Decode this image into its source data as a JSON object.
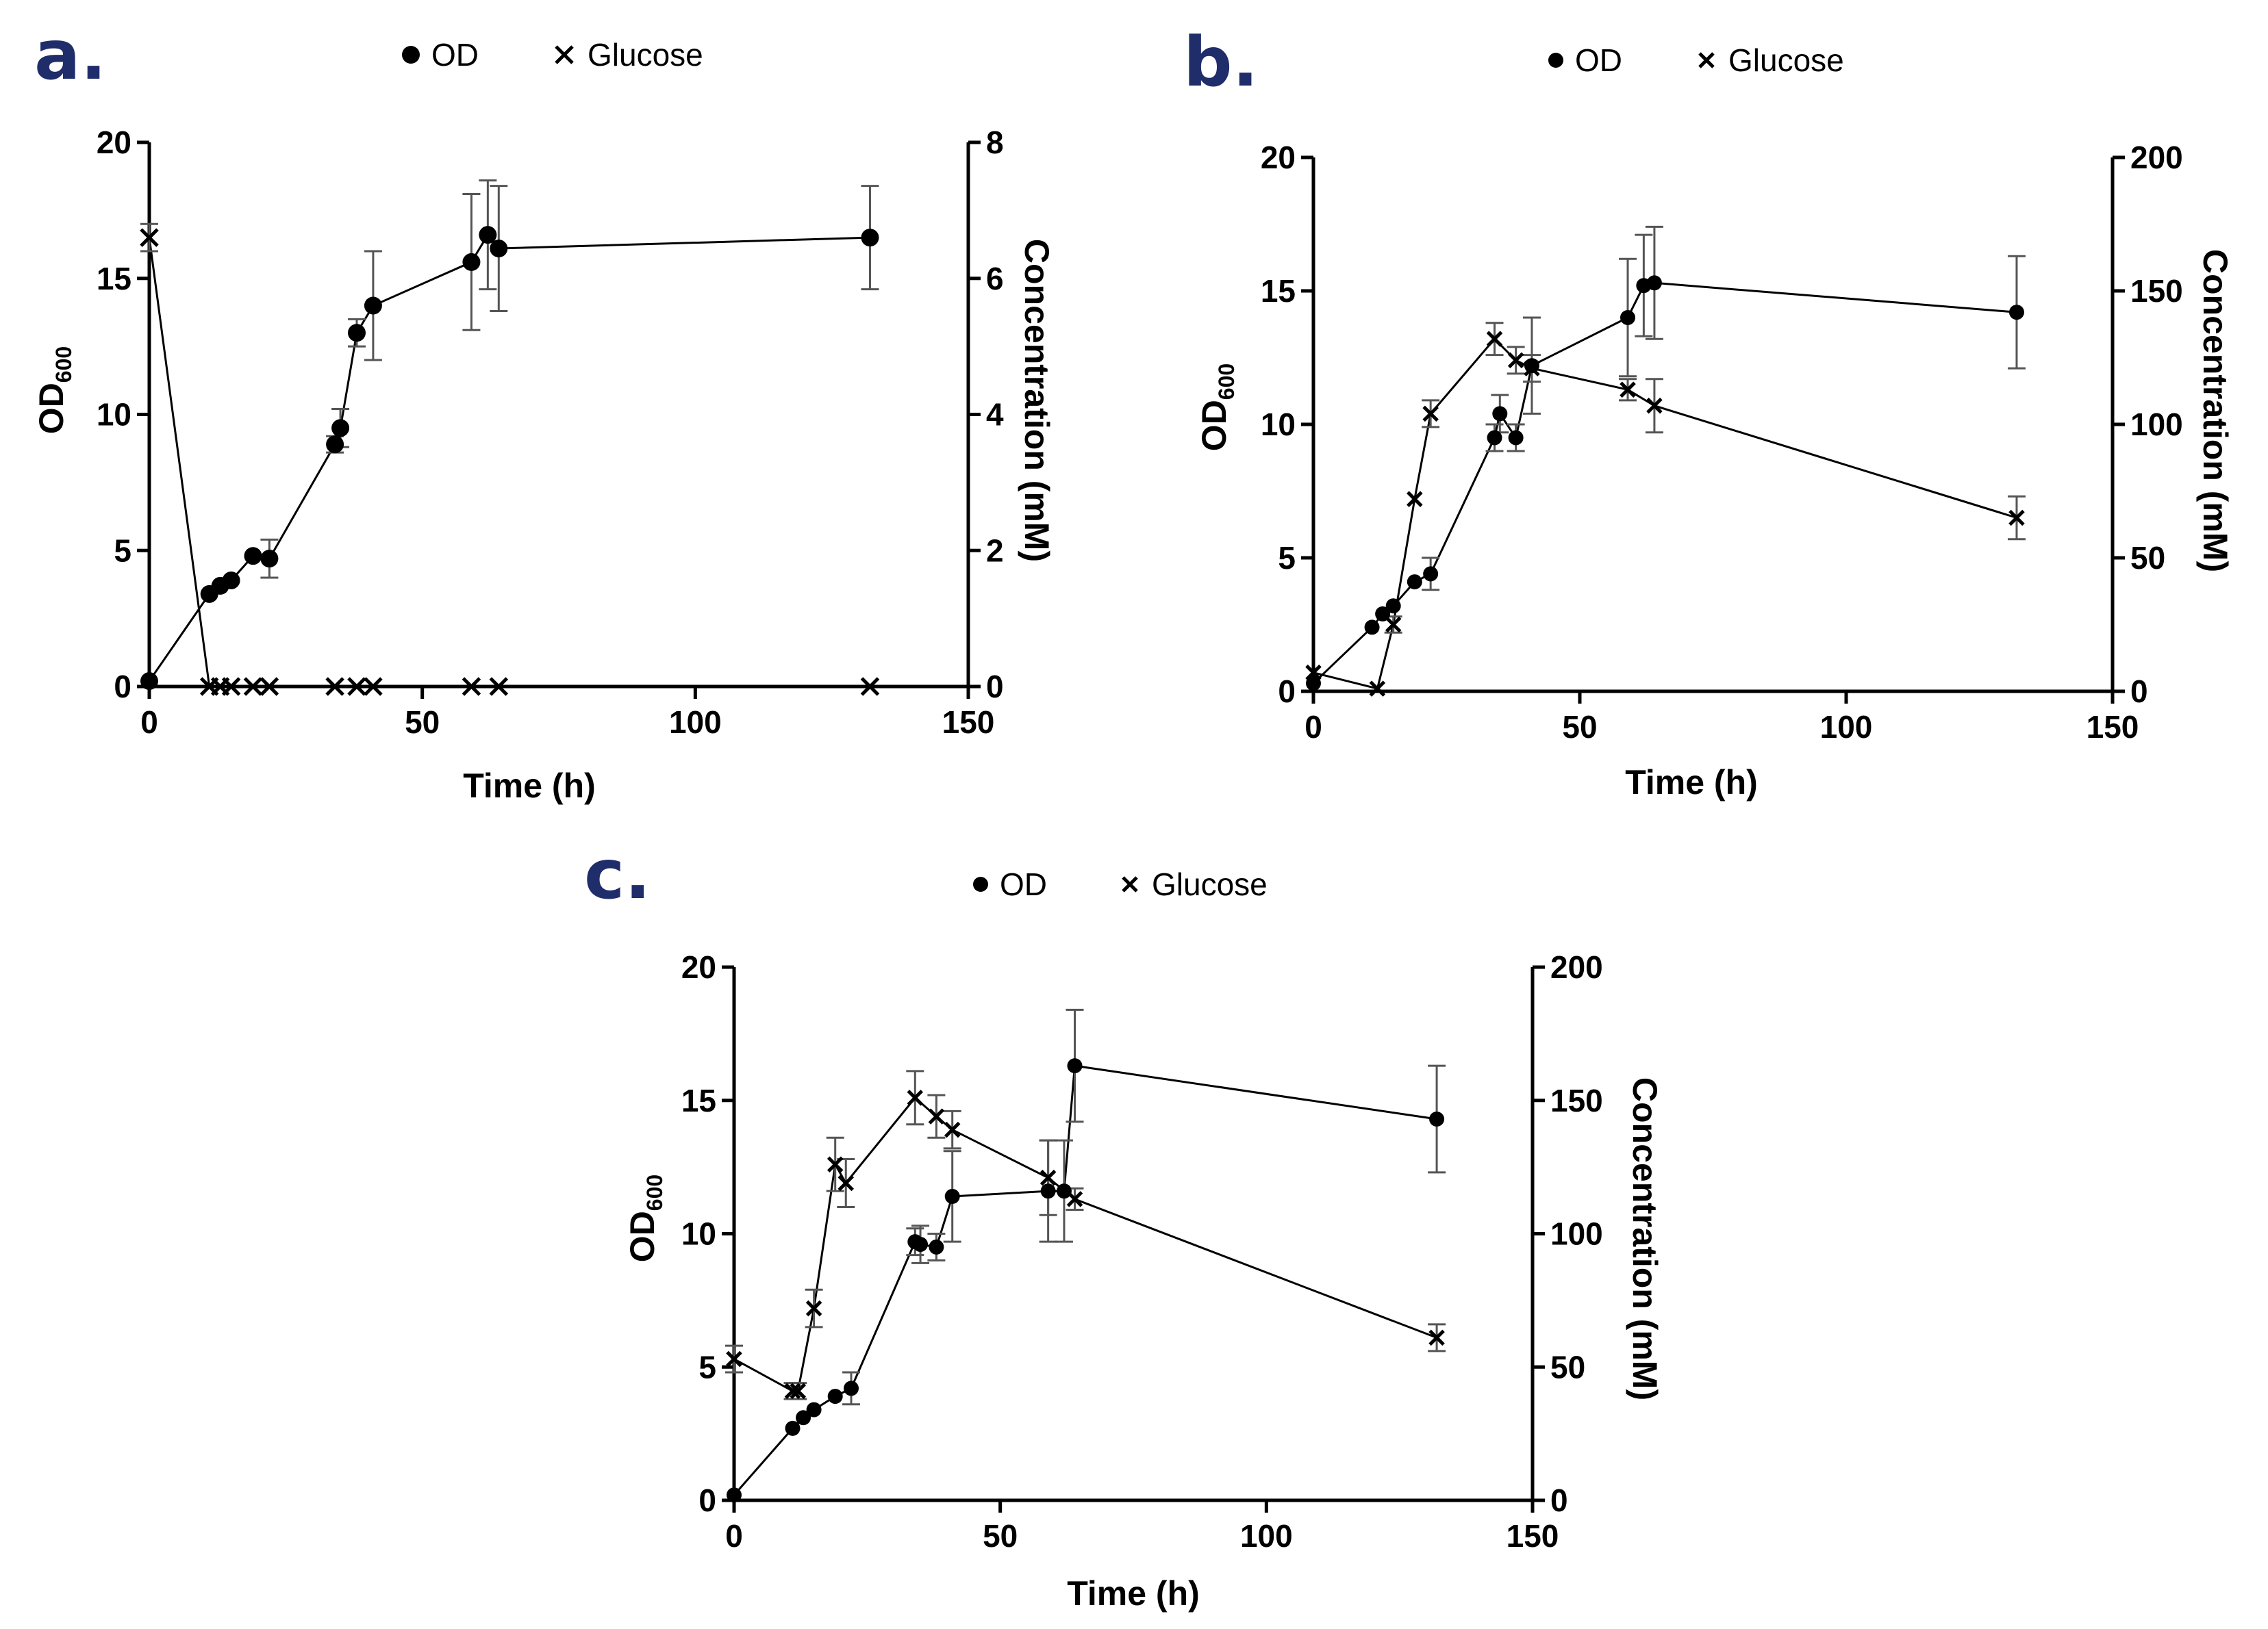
{
  "colors": {
    "ink": "#000000",
    "panel_letter": "#1f2d6b",
    "error_bar": "#555555"
  },
  "legend": {
    "od_label": "OD",
    "glucose_label": "Glucose",
    "od_marker": "filled-circle",
    "glucose_marker": "x-cross"
  },
  "chart_data": [
    {
      "type": "line",
      "panel": "a.",
      "xlabel": "Time (h)",
      "ylabel_left": "OD",
      "ylabel_left_sub": "600",
      "ylabel_right": "Concentration (mM)",
      "xlim": [
        0,
        150
      ],
      "ylim_left": [
        0,
        20
      ],
      "ylim_right": [
        0,
        8
      ],
      "xticks": [
        0,
        50,
        100,
        150
      ],
      "yticks_left": [
        0,
        5,
        10,
        15,
        20
      ],
      "yticks_right": [
        0,
        2,
        4,
        6,
        8
      ],
      "series": [
        {
          "name": "OD",
          "axis": "left",
          "marker": "circle",
          "x": [
            0,
            11,
            13,
            15,
            19,
            22,
            34,
            35,
            38,
            41,
            59,
            62,
            64,
            132
          ],
          "y": [
            0.2,
            3.4,
            3.7,
            3.9,
            4.8,
            4.7,
            8.9,
            9.5,
            13.0,
            14.0,
            15.6,
            16.6,
            16.1,
            16.5
          ],
          "err": [
            0,
            0,
            0,
            0,
            0,
            0.7,
            0.3,
            0.7,
            0.5,
            2.0,
            2.5,
            2.0,
            2.3,
            1.9
          ]
        },
        {
          "name": "Glucose",
          "axis": "right",
          "marker": "cross",
          "x": [
            0,
            11,
            13,
            15,
            19,
            22,
            34,
            38,
            41,
            59,
            64,
            132
          ],
          "y": [
            6.6,
            0,
            0,
            0,
            0,
            0,
            0,
            0,
            0,
            0,
            0,
            0
          ],
          "err": [
            0.2,
            0,
            0,
            0,
            0,
            0,
            0,
            0,
            0,
            0,
            0,
            0
          ]
        }
      ]
    },
    {
      "type": "line",
      "panel": "b.",
      "xlabel": "Time (h)",
      "ylabel_left": "OD",
      "ylabel_left_sub": "600",
      "ylabel_right": "Concentration (mM)",
      "xlim": [
        0,
        150
      ],
      "ylim_left": [
        0,
        20
      ],
      "ylim_right": [
        0,
        200
      ],
      "xticks": [
        0,
        50,
        100,
        150
      ],
      "yticks_left": [
        0,
        5,
        10,
        15,
        20
      ],
      "yticks_right": [
        0,
        50,
        100,
        150,
        200
      ],
      "series": [
        {
          "name": "OD",
          "axis": "left",
          "marker": "circle",
          "x": [
            0,
            11,
            13,
            15,
            19,
            22,
            34,
            35,
            38,
            41,
            59,
            62,
            64,
            132
          ],
          "y": [
            0.3,
            2.4,
            2.9,
            3.2,
            4.1,
            4.4,
            9.5,
            10.4,
            9.5,
            12.2,
            14.0,
            15.2,
            15.3,
            14.2
          ],
          "err": [
            0,
            0,
            0,
            0,
            0,
            0.6,
            0.5,
            0.7,
            0.5,
            1.8,
            2.2,
            1.9,
            2.1,
            2.1
          ]
        },
        {
          "name": "Glucose",
          "axis": "right",
          "marker": "cross",
          "x": [
            0,
            12,
            15,
            19,
            22,
            34,
            38,
            41,
            59,
            64,
            132
          ],
          "y": [
            7,
            1,
            25,
            72,
            104,
            132,
            124,
            121,
            113,
            107,
            65
          ],
          "err": [
            0,
            0,
            3,
            0,
            5,
            6,
            5,
            5,
            4,
            10,
            8
          ]
        }
      ]
    },
    {
      "type": "line",
      "panel": "c.",
      "xlabel": "Time (h)",
      "ylabel_left": "OD",
      "ylabel_left_sub": "600",
      "ylabel_right": "Concentration (mM)",
      "xlim": [
        0,
        150
      ],
      "ylim_left": [
        0,
        20
      ],
      "ylim_right": [
        0,
        200
      ],
      "xticks": [
        0,
        50,
        100,
        150
      ],
      "yticks_left": [
        0,
        5,
        10,
        15,
        20
      ],
      "yticks_right": [
        0,
        50,
        100,
        150,
        200
      ],
      "series": [
        {
          "name": "OD",
          "axis": "left",
          "marker": "circle",
          "x": [
            0,
            11,
            13,
            15,
            19,
            22,
            34,
            35,
            38,
            41,
            59,
            62,
            64,
            132
          ],
          "y": [
            0.2,
            2.7,
            3.1,
            3.4,
            3.9,
            4.2,
            9.7,
            9.6,
            9.5,
            11.4,
            11.6,
            11.6,
            16.3,
            14.3
          ],
          "err": [
            0,
            0,
            0,
            0,
            0,
            0.6,
            0.5,
            0.7,
            0.5,
            1.7,
            1.9,
            1.9,
            2.1,
            2.0
          ]
        },
        {
          "name": "Glucose",
          "axis": "right",
          "marker": "cross",
          "x": [
            0,
            11,
            12,
            15,
            19,
            21,
            34,
            38,
            41,
            59,
            64,
            132
          ],
          "y": [
            53,
            41,
            41,
            72,
            126,
            119,
            151,
            144,
            139,
            121,
            113,
            61
          ],
          "err": [
            5,
            3,
            3,
            7,
            10,
            9,
            10,
            8,
            7,
            14,
            4,
            5
          ]
        }
      ]
    }
  ]
}
